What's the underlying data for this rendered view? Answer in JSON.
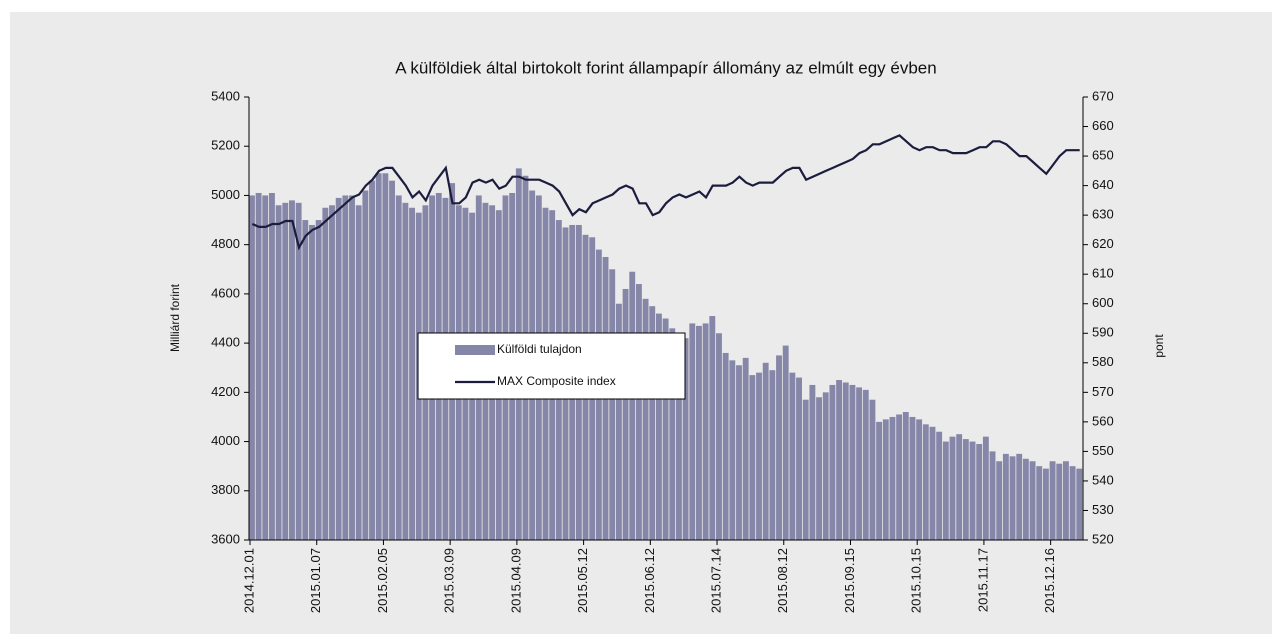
{
  "chart_data": {
    "type": "bar_line",
    "title": "A külföldiek által birtokolt forint állampapír állomány az elmúlt egy évben",
    "y_label": "Milliárd forint",
    "y2_label": "pont",
    "categories": [
      "2014.12.01",
      null,
      null,
      null,
      null,
      null,
      null,
      null,
      null,
      null,
      "2015.01.07",
      null,
      null,
      null,
      null,
      null,
      null,
      null,
      null,
      null,
      "2015.02.05",
      null,
      null,
      null,
      null,
      null,
      null,
      null,
      null,
      null,
      "2015.03.09",
      null,
      null,
      null,
      null,
      null,
      null,
      null,
      null,
      null,
      "2015.04.09",
      null,
      null,
      null,
      null,
      null,
      null,
      null,
      null,
      null,
      "2015.05.12",
      null,
      null,
      null,
      null,
      null,
      null,
      null,
      null,
      null,
      "2015.06.12",
      null,
      null,
      null,
      null,
      null,
      null,
      null,
      null,
      null,
      "2015.07.14",
      null,
      null,
      null,
      null,
      null,
      null,
      null,
      null,
      null,
      "2015.08.12",
      null,
      null,
      null,
      null,
      null,
      null,
      null,
      null,
      null,
      "2015.09.15",
      null,
      null,
      null,
      null,
      null,
      null,
      null,
      null,
      null,
      "2015.10.15",
      null,
      null,
      null,
      null,
      null,
      null,
      null,
      null,
      null,
      "2015.11.17",
      null,
      null,
      null,
      null,
      null,
      null,
      null,
      null,
      null,
      "2015.12.16",
      null,
      null,
      null,
      null
    ],
    "series": [
      {
        "name": "Külföldi tulajdon",
        "type": "bar",
        "color": "#8686a8",
        "values": [
          5000,
          5010,
          5000,
          5010,
          4960,
          4970,
          4980,
          4970,
          4900,
          4880,
          4900,
          4950,
          4960,
          4990,
          5000,
          5000,
          4960,
          5020,
          5060,
          5090,
          5090,
          5060,
          5000,
          4970,
          4950,
          4930,
          4960,
          5000,
          5010,
          4990,
          5050,
          4960,
          4950,
          4930,
          5000,
          4970,
          4960,
          4940,
          5000,
          5010,
          5110,
          5080,
          5020,
          5000,
          4950,
          4940,
          4900,
          4870,
          4880,
          4880,
          4840,
          4830,
          4780,
          4750,
          4700,
          4560,
          4620,
          4690,
          4640,
          4580,
          4550,
          4520,
          4500,
          4460,
          4440,
          4420,
          4480,
          4470,
          4480,
          4510,
          4440,
          4360,
          4330,
          4310,
          4340,
          4270,
          4280,
          4320,
          4290,
          4350,
          4390,
          4280,
          4260,
          4170,
          4230,
          4180,
          4200,
          4230,
          4250,
          4240,
          4230,
          4220,
          4210,
          4170,
          4080,
          4090,
          4100,
          4110,
          4120,
          4100,
          4090,
          4070,
          4060,
          4040,
          4000,
          4020,
          4030,
          4010,
          4000,
          3990,
          4020,
          3960,
          3920,
          3950,
          3940,
          3950,
          3930,
          3920,
          3900,
          3890,
          3920,
          3910,
          3920,
          3900,
          3890
        ]
      },
      {
        "name": "MAX Composite index",
        "type": "line",
        "axis": "y2",
        "color": "#1c1c3e",
        "values": [
          627,
          626,
          626,
          627,
          627,
          628,
          628,
          619,
          623,
          625,
          626,
          628,
          630,
          632,
          634,
          636,
          637,
          640,
          642,
          645,
          646,
          646,
          643,
          640,
          636,
          638,
          635,
          640,
          643,
          646,
          634,
          634,
          636,
          641,
          642,
          641,
          642,
          639,
          640,
          643,
          643,
          642,
          642,
          642,
          641,
          640,
          638,
          634,
          630,
          632,
          631,
          634,
          635,
          636,
          637,
          639,
          640,
          639,
          634,
          634,
          630,
          631,
          634,
          636,
          637,
          636,
          637,
          638,
          636,
          640,
          640,
          640,
          641,
          643,
          641,
          640,
          641,
          641,
          641,
          643,
          645,
          646,
          646,
          642,
          643,
          644,
          645,
          646,
          647,
          648,
          649,
          651,
          652,
          654,
          654,
          655,
          656,
          657,
          655,
          653,
          652,
          653,
          653,
          652,
          652,
          651,
          651,
          651,
          652,
          653,
          653,
          655,
          655,
          654,
          652,
          650,
          650,
          648,
          646,
          644,
          647,
          650,
          652,
          652,
          652
        ]
      }
    ],
    "ylim": [
      3600,
      5400
    ],
    "yticks": [
      3600,
      3800,
      4000,
      4200,
      4400,
      4600,
      4800,
      5000,
      5200,
      5400
    ],
    "y2lim": [
      520,
      670
    ],
    "y2ticks": [
      520,
      530,
      540,
      550,
      560,
      570,
      580,
      590,
      600,
      610,
      620,
      630,
      640,
      650,
      660,
      670
    ]
  }
}
